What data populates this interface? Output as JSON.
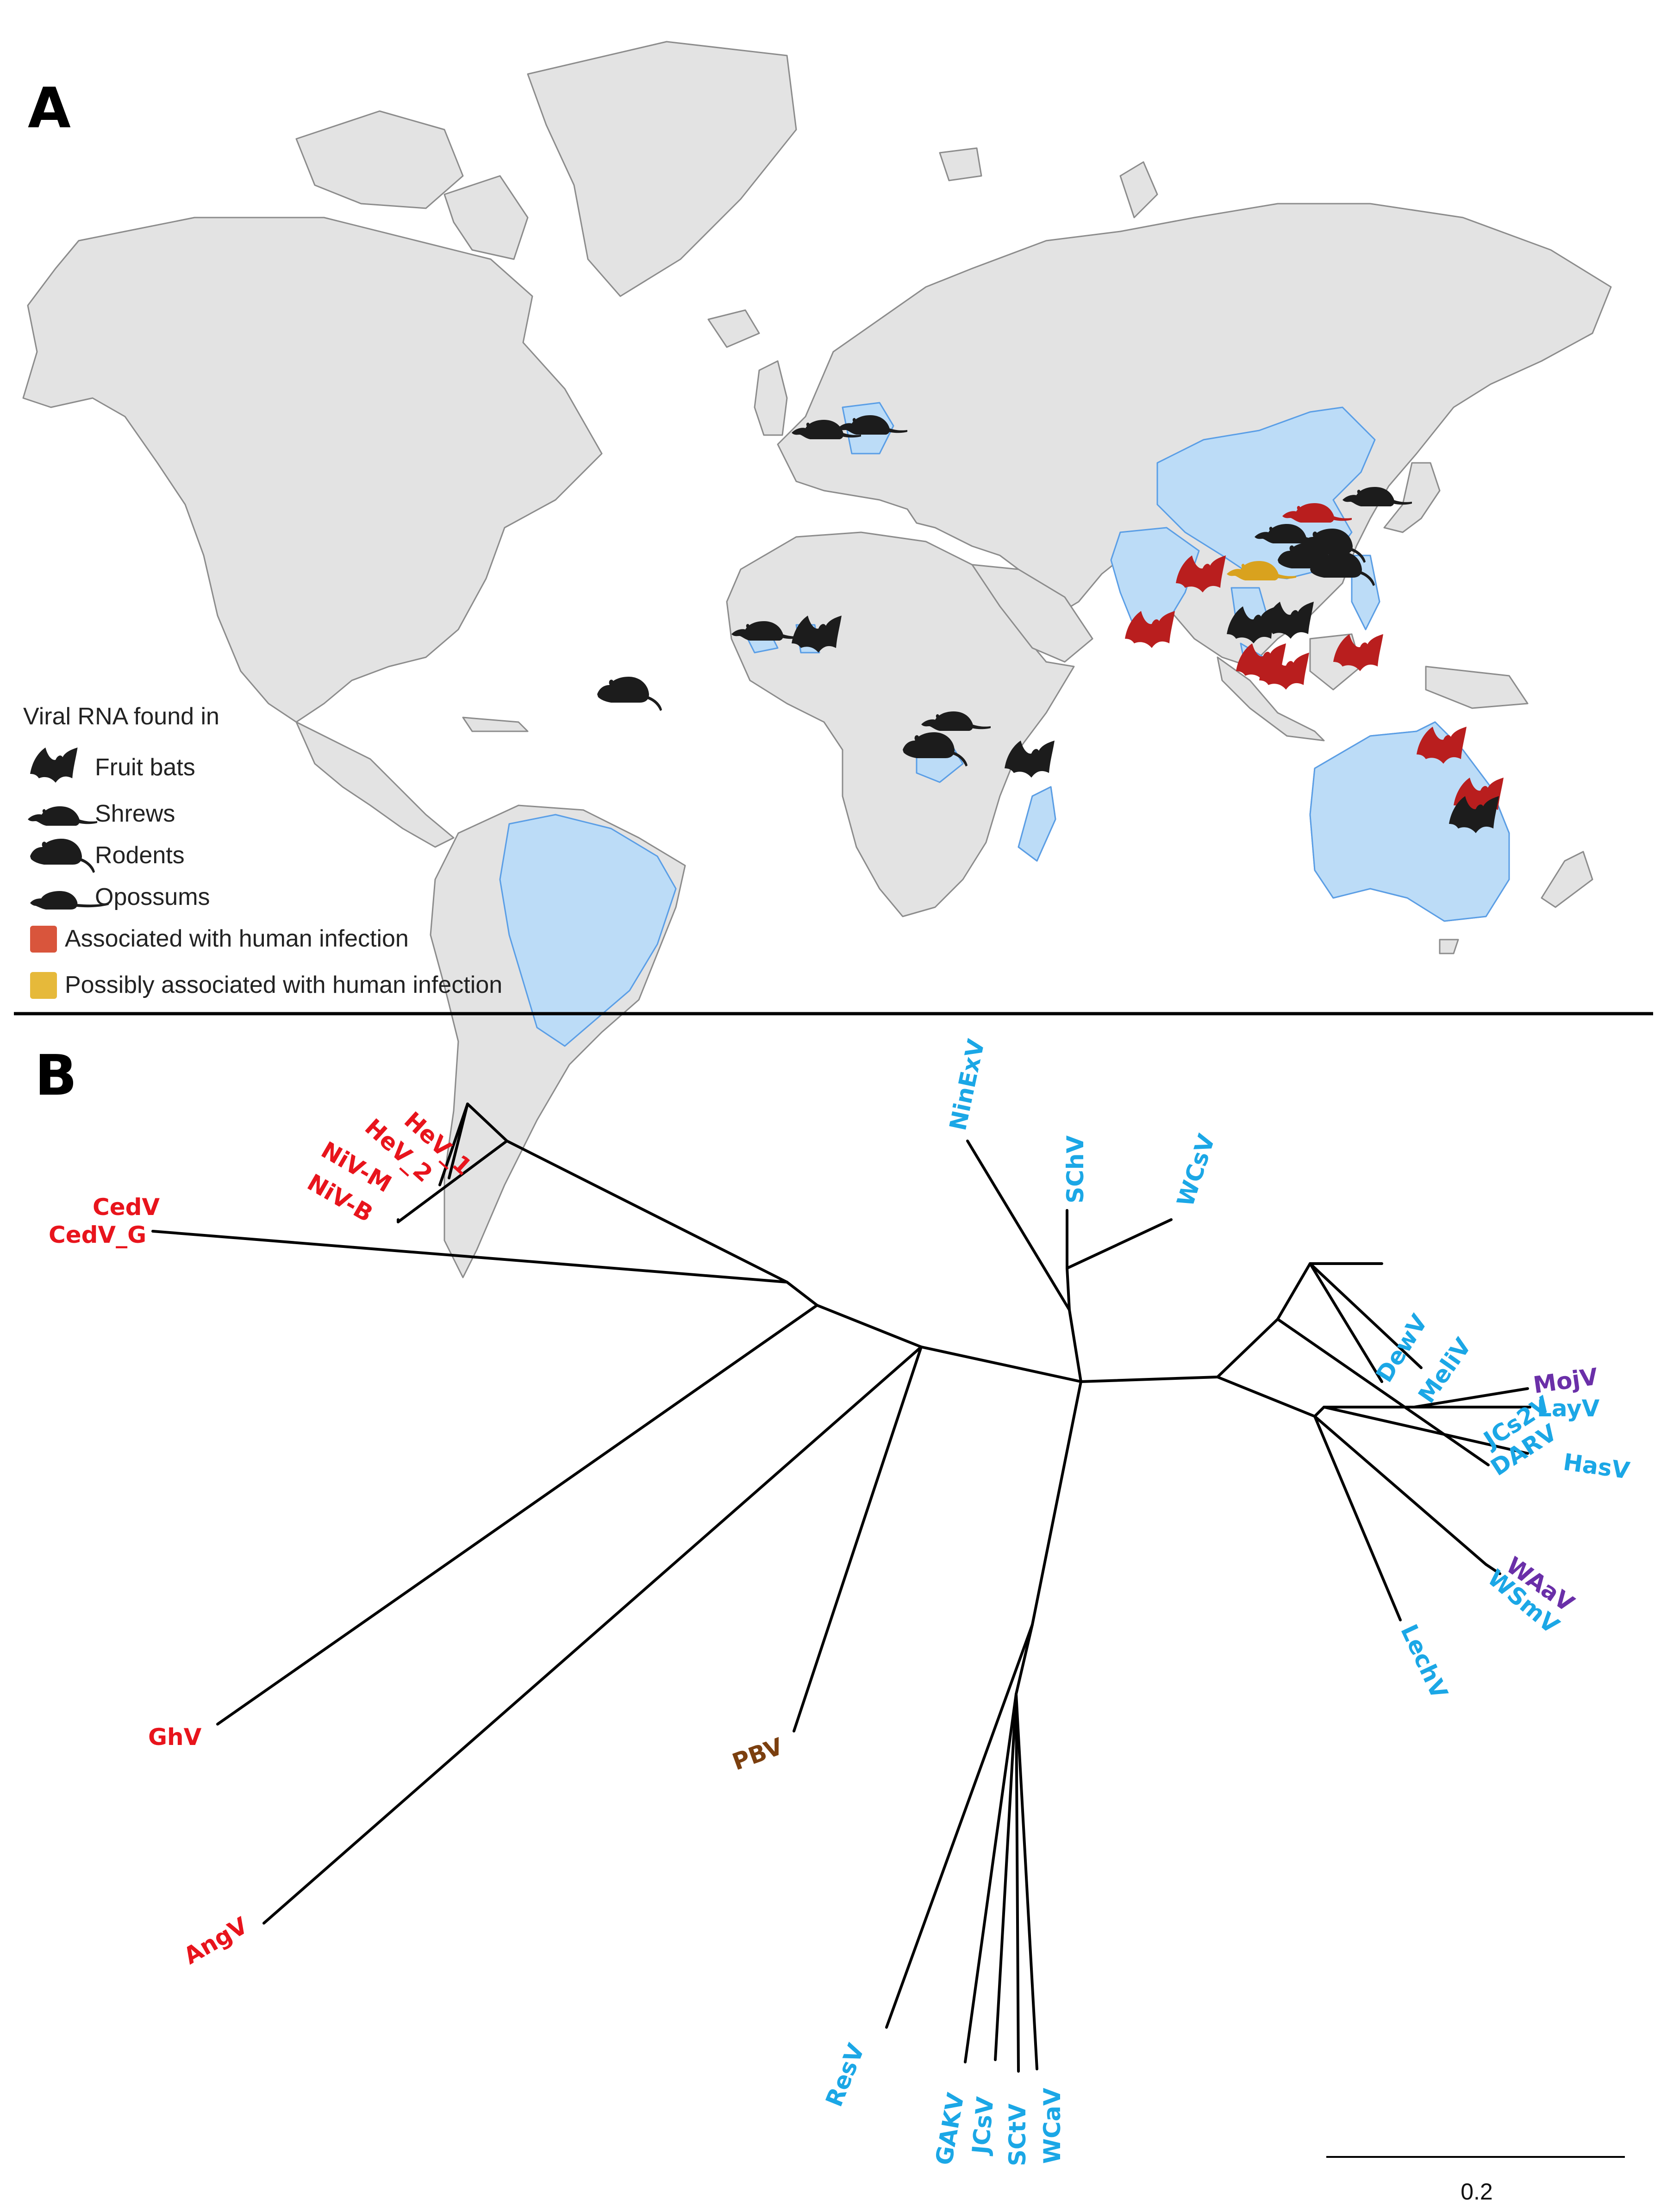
{
  "panels": {
    "map_letter": "A",
    "tree_letter": "B"
  },
  "colors": {
    "land": "#e3e3e3",
    "land_border": "#8c8c8c",
    "highlight": "#bcdcf7",
    "highlight_border": "#5a9ee6",
    "black_marker": "#1c1c1c",
    "red_marker": "#b91e1e",
    "gold_marker": "#d9a21e",
    "red_label": "#e8141c",
    "blue_label": "#1ba7e6",
    "brown_label": "#7b3f0f",
    "purple_label": "#6a2fa8"
  },
  "legend": {
    "title": "Viral RNA found in",
    "items": [
      {
        "icon": "fruit-bat-icon",
        "label": "Fruit bats"
      },
      {
        "icon": "shrew-icon",
        "label": "Shrews"
      },
      {
        "icon": "rodent-icon",
        "label": "Rodents"
      },
      {
        "icon": "opossum-icon",
        "label": "Opossums"
      },
      {
        "icon": "red-swatch-icon",
        "label": "Associated with human infection"
      },
      {
        "icon": "yellow-swatch-icon",
        "label": "Possibly associated with human infection"
      }
    ]
  },
  "tree": {
    "tips": [
      {
        "label": "HeV_1",
        "group": "red"
      },
      {
        "label": "HeV_2",
        "group": "red"
      },
      {
        "label": "NiV-M",
        "group": "red"
      },
      {
        "label": "NiV-B",
        "group": "red"
      },
      {
        "label": "CedV",
        "group": "red"
      },
      {
        "label": "CedV_G",
        "group": "red"
      },
      {
        "label": "GhV",
        "group": "red"
      },
      {
        "label": "AngV",
        "group": "red"
      },
      {
        "label": "PBV",
        "group": "brown"
      },
      {
        "label": "NinExV",
        "group": "blue"
      },
      {
        "label": "SChV",
        "group": "blue"
      },
      {
        "label": "WCsV",
        "group": "blue"
      },
      {
        "label": "DewV",
        "group": "blue"
      },
      {
        "label": "MeliV",
        "group": "blue"
      },
      {
        "label": "JCs2V",
        "group": "blue"
      },
      {
        "label": "DARV",
        "group": "blue"
      },
      {
        "label": "MojV",
        "group": "purple"
      },
      {
        "label": "LayV",
        "group": "blue"
      },
      {
        "label": "HasV",
        "group": "blue"
      },
      {
        "label": "WAaV",
        "group": "purple"
      },
      {
        "label": "WSmV",
        "group": "blue"
      },
      {
        "label": "LechV",
        "group": "blue"
      },
      {
        "label": "ResV",
        "group": "blue"
      },
      {
        "label": "GAKV",
        "group": "blue"
      },
      {
        "label": "JCsV",
        "group": "blue"
      },
      {
        "label": "SCtV",
        "group": "blue"
      },
      {
        "label": "WCaV",
        "group": "blue"
      }
    ],
    "scale_bar": {
      "label": "0.2"
    }
  }
}
